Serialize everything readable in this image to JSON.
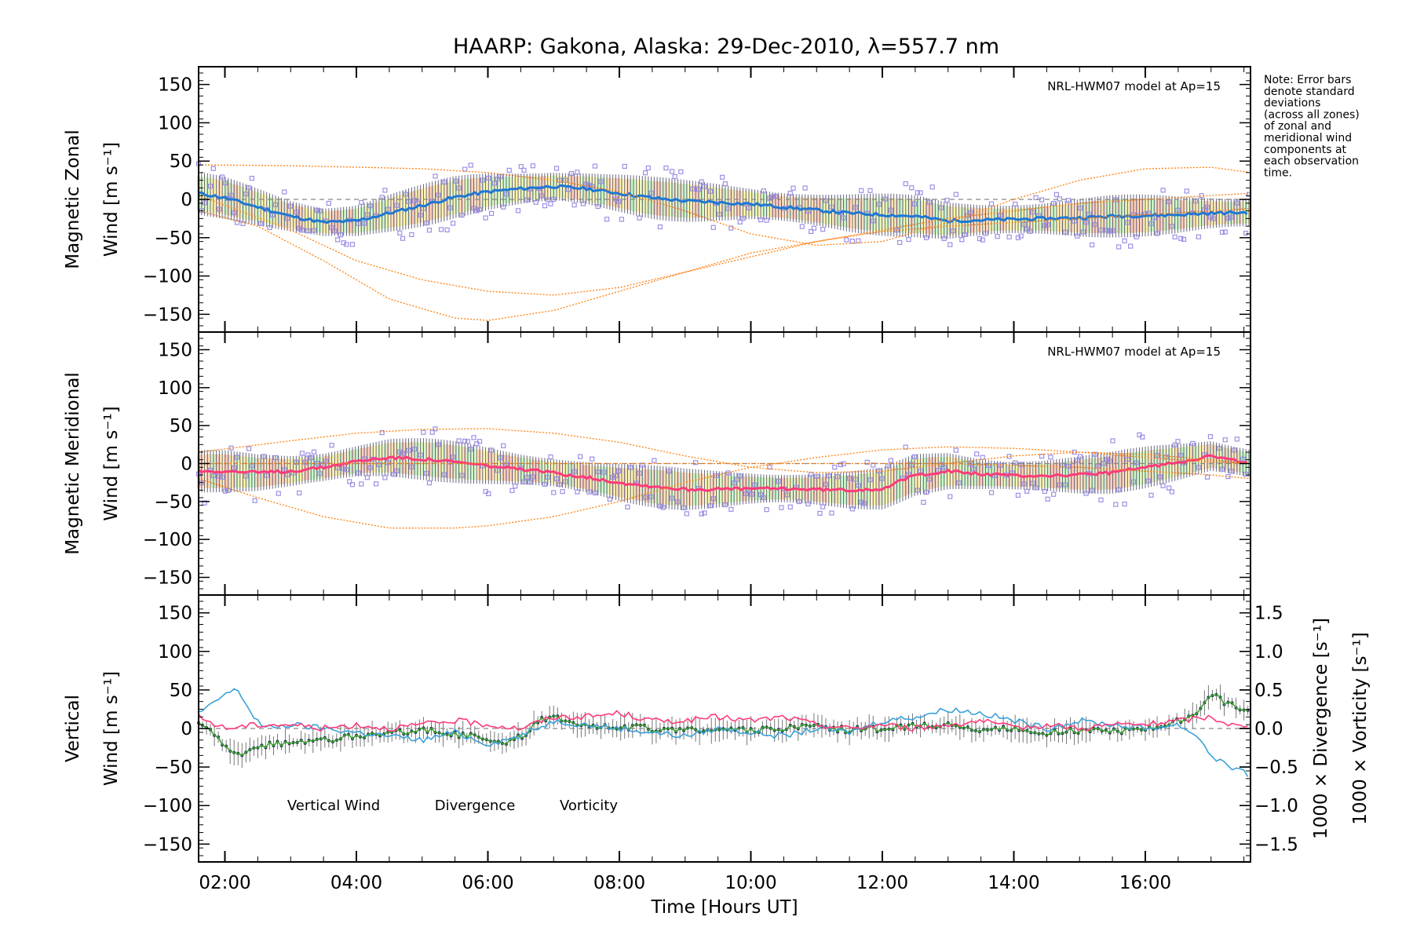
{
  "title": "HAARP: Gakona,  Alaska: 29-Dec-2010, λ=557.7 nm",
  "note_lines": [
    "Note: Error bars",
    "denote standard",
    "deviations",
    "(across all zones)",
    "of zonal and",
    "meridional wind",
    "components at",
    "each observation",
    "time."
  ],
  "colors": {
    "model": "#ff7f0e",
    "zonal_mean": "#1f77d4",
    "meridional_mean": "#ff3b7a",
    "vertical": "#3aa82a",
    "divergence": "#3aa2d8",
    "vorticity": "#ff3b7a",
    "scatter": "#9d8fe6",
    "errbar": "#333355",
    "fill_warm": "#ffb08a",
    "fill_green": "#a8f5a0",
    "fill_yellow": "#fff07a"
  },
  "chart_data": [
    {
      "type": "line",
      "panel": "zonal",
      "ylabel_line1": "Magnetic Zonal",
      "ylabel_line2": "Wind [m s⁻¹]",
      "model_label": "NRL-HWM07 model at Ap=15",
      "ylim": [
        -165,
        165
      ],
      "xlim": [
        1.6,
        17.6
      ],
      "yticks": [
        -150,
        -100,
        -50,
        0,
        50,
        100,
        150
      ],
      "series": [
        {
          "role": "mean",
          "x": [
            1.6,
            2.0,
            2.5,
            3.0,
            3.5,
            4.0,
            4.5,
            5.0,
            5.5,
            6.0,
            6.5,
            7.0,
            7.5,
            8.0,
            8.5,
            9.0,
            9.5,
            10.0,
            10.5,
            11.0,
            11.5,
            12.0,
            12.5,
            13.0,
            13.5,
            14.0,
            14.5,
            15.0,
            15.5,
            16.0,
            16.5,
            17.0,
            17.6
          ],
          "values": [
            8,
            2,
            -10,
            -22,
            -30,
            -28,
            -18,
            -8,
            3,
            10,
            14,
            17,
            14,
            8,
            2,
            -2,
            -4,
            -6,
            -10,
            -14,
            -18,
            -20,
            -22,
            -28,
            -27,
            -26,
            -25,
            -24,
            -22,
            -21,
            -20,
            -18,
            -17
          ]
        },
        {
          "role": "model",
          "x": [
            1.6,
            3.0,
            4.0,
            5.0,
            6.0,
            7.0,
            8.0,
            9.0,
            10.0,
            11.0,
            12.0,
            13.0,
            14.0,
            15.0,
            16.0,
            17.0,
            17.6
          ],
          "values": [
            45,
            44,
            42,
            40,
            35,
            25,
            10,
            -15,
            -45,
            -60,
            -55,
            -30,
            0,
            25,
            40,
            42,
            35
          ]
        },
        {
          "role": "model",
          "x": [
            1.6,
            2.5,
            3.5,
            4.5,
            5.5,
            6.0,
            7.0,
            8.0,
            9.0,
            10.0,
            11.0,
            12.0,
            13.0,
            14.0,
            15.0,
            16.0,
            17.0,
            17.6
          ],
          "values": [
            -15,
            -35,
            -80,
            -130,
            -155,
            -158,
            -145,
            -120,
            -95,
            -70,
            -55,
            -42,
            -35,
            -30,
            -25,
            -20,
            -15,
            -12
          ]
        },
        {
          "role": "model",
          "x": [
            1.6,
            3.0,
            4.0,
            5.0,
            6.0,
            7.0,
            8.0,
            9.0,
            10.0,
            11.0,
            12.0,
            13.0,
            14.0,
            15.0,
            16.0,
            17.0,
            17.6
          ],
          "values": [
            5,
            -40,
            -80,
            -105,
            -120,
            -125,
            -115,
            -95,
            -75,
            -55,
            -40,
            -25,
            -15,
            -5,
            0,
            5,
            8
          ]
        }
      ]
    },
    {
      "type": "line",
      "panel": "meridional",
      "ylabel_line1": "Magnetic Meridional",
      "ylabel_line2": "Wind [m s⁻¹]",
      "model_label": "NRL-HWM07 model at Ap=15",
      "ylim": [
        -165,
        165
      ],
      "xlim": [
        1.6,
        17.6
      ],
      "yticks": [
        -150,
        -100,
        -50,
        0,
        50,
        100,
        150
      ],
      "series": [
        {
          "role": "mean",
          "x": [
            1.6,
            2.0,
            2.5,
            3.0,
            3.5,
            4.0,
            4.5,
            5.0,
            5.5,
            6.0,
            6.5,
            7.0,
            7.5,
            8.0,
            8.5,
            9.0,
            9.5,
            10.0,
            10.5,
            11.0,
            11.5,
            12.0,
            12.5,
            13.0,
            13.5,
            14.0,
            14.5,
            15.0,
            15.5,
            16.0,
            16.5,
            17.0,
            17.6
          ],
          "values": [
            -10,
            -10,
            -12,
            -10,
            -5,
            3,
            8,
            6,
            2,
            -3,
            -8,
            -12,
            -18,
            -25,
            -30,
            -34,
            -34,
            -33,
            -33,
            -34,
            -35,
            -33,
            -15,
            -10,
            -14,
            -16,
            -16,
            -15,
            -12,
            -5,
            2,
            10,
            0
          ]
        },
        {
          "role": "model",
          "x": [
            1.6,
            2.5,
            3.5,
            4.5,
            5.5,
            6.0,
            7.0,
            8.0,
            9.0,
            10.0,
            11.0,
            12.0,
            13.0,
            14.0,
            15.0,
            16.0,
            17.0,
            17.6
          ],
          "values": [
            -20,
            -45,
            -70,
            -85,
            -85,
            -82,
            -70,
            -50,
            -25,
            -5,
            8,
            18,
            22,
            20,
            15,
            8,
            2,
            0
          ]
        },
        {
          "role": "model",
          "x": [
            1.6,
            3.0,
            4.0,
            5.0,
            6.0,
            7.0,
            8.0,
            9.0,
            10.0,
            11.0,
            12.0,
            13.0,
            14.0,
            15.0,
            16.0,
            17.0,
            17.6
          ],
          "values": [
            15,
            30,
            40,
            45,
            46,
            40,
            28,
            10,
            -5,
            -12,
            -10,
            0,
            10,
            15,
            12,
            5,
            0
          ]
        },
        {
          "role": "model",
          "x": [
            1.6,
            3.0,
            5.0,
            7.0,
            9.0,
            11.0,
            13.0,
            15.0,
            17.0,
            17.6
          ],
          "values": [
            0,
            0,
            0,
            0,
            0,
            0,
            0,
            -5,
            -15,
            -20
          ]
        }
      ]
    },
    {
      "type": "line",
      "panel": "vertical",
      "ylabel_line1": "Vertical",
      "ylabel_line2": "Wind [m s⁻¹]",
      "y2label_divergence": "1000 × Divergence [s⁻¹]",
      "y2label_vorticity": "1000 × Vorticity [s⁻¹]",
      "ylim": [
        -165,
        165
      ],
      "y2lim": [
        -1.65,
        1.65
      ],
      "xlim": [
        1.6,
        17.6
      ],
      "yticks": [
        -150,
        -100,
        -50,
        0,
        50,
        100,
        150
      ],
      "y2ticks": [
        -1.5,
        -1.0,
        -0.5,
        0.0,
        0.5,
        1.0,
        1.5
      ],
      "y2ticklabels": [
        "−1.5",
        "−1.0",
        "−0.5",
        "0.0",
        "0.5",
        "1.0",
        "1.5"
      ],
      "legend": [
        "Vertical Wind",
        "Divergence",
        "Vorticity"
      ],
      "series": [
        {
          "name": "Vertical Wind",
          "axis": "left",
          "x": [
            1.6,
            1.8,
            2.0,
            2.2,
            2.4,
            2.6,
            3.0,
            3.5,
            4.0,
            4.5,
            5.0,
            5.5,
            6.0,
            6.3,
            6.6,
            6.8,
            7.0,
            7.5,
            8.0,
            8.5,
            9.0,
            9.5,
            10.0,
            10.5,
            11.0,
            11.5,
            12.0,
            12.5,
            13.0,
            13.5,
            14.0,
            14.5,
            15.0,
            15.5,
            16.0,
            16.5,
            16.8,
            17.0,
            17.2,
            17.4,
            17.6
          ],
          "values": [
            10,
            -5,
            -25,
            -35,
            -28,
            -22,
            -18,
            -15,
            -10,
            -5,
            -2,
            -8,
            -12,
            -20,
            -5,
            12,
            15,
            5,
            2,
            0,
            -2,
            0,
            -3,
            0,
            2,
            -2,
            0,
            3,
            5,
            -2,
            0,
            -5,
            -3,
            -4,
            0,
            10,
            20,
            45,
            35,
            30,
            20
          ]
        },
        {
          "name": "Divergence",
          "axis": "right",
          "x": [
            1.6,
            1.8,
            2.0,
            2.2,
            2.4,
            2.6,
            3.0,
            3.5,
            4.0,
            4.5,
            5.0,
            5.5,
            6.0,
            6.5,
            7.0,
            7.5,
            8.0,
            8.5,
            9.0,
            9.5,
            10.0,
            10.5,
            11.0,
            11.5,
            12.0,
            12.5,
            13.0,
            13.5,
            14.0,
            14.5,
            15.0,
            15.5,
            16.0,
            16.5,
            16.8,
            17.0,
            17.2,
            17.4,
            17.6
          ],
          "values": [
            0.2,
            0.3,
            0.45,
            0.5,
            0.2,
            0.0,
            0.05,
            0.0,
            -0.05,
            -0.1,
            -0.15,
            -0.05,
            -0.2,
            -0.1,
            0.1,
            0.05,
            0.0,
            -0.05,
            -0.1,
            0.0,
            -0.05,
            -0.1,
            0.0,
            -0.05,
            0.1,
            0.15,
            0.25,
            0.2,
            0.1,
            0.0,
            0.1,
            0.05,
            0.0,
            0.05,
            -0.1,
            -0.35,
            -0.45,
            -0.55,
            -0.6
          ]
        },
        {
          "name": "Vorticity",
          "axis": "right",
          "x": [
            1.6,
            2.0,
            2.5,
            3.0,
            3.5,
            4.0,
            4.5,
            5.0,
            5.5,
            6.0,
            6.5,
            7.0,
            7.5,
            8.0,
            8.5,
            9.0,
            9.5,
            10.0,
            10.5,
            11.0,
            11.5,
            12.0,
            12.5,
            13.0,
            13.5,
            14.0,
            14.5,
            15.0,
            15.5,
            16.0,
            16.5,
            17.0,
            17.3,
            17.6
          ],
          "values": [
            0.15,
            0.0,
            0.05,
            0.05,
            0.0,
            0.05,
            0.0,
            0.05,
            0.1,
            0.05,
            0.0,
            0.15,
            0.15,
            0.2,
            0.1,
            0.1,
            0.15,
            0.1,
            0.15,
            0.05,
            0.0,
            0.05,
            0.0,
            0.05,
            0.1,
            0.0,
            0.05,
            0.0,
            0.05,
            0.05,
            0.1,
            0.15,
            0.05,
            0.0
          ]
        }
      ]
    }
  ],
  "xaxis": {
    "label": "Time [Hours UT]",
    "ticks": [
      2,
      4,
      6,
      8,
      10,
      12,
      14,
      16
    ],
    "ticklabels": [
      "02:00",
      "04:00",
      "06:00",
      "08:00",
      "10:00",
      "12:00",
      "14:00",
      "16:00"
    ]
  }
}
